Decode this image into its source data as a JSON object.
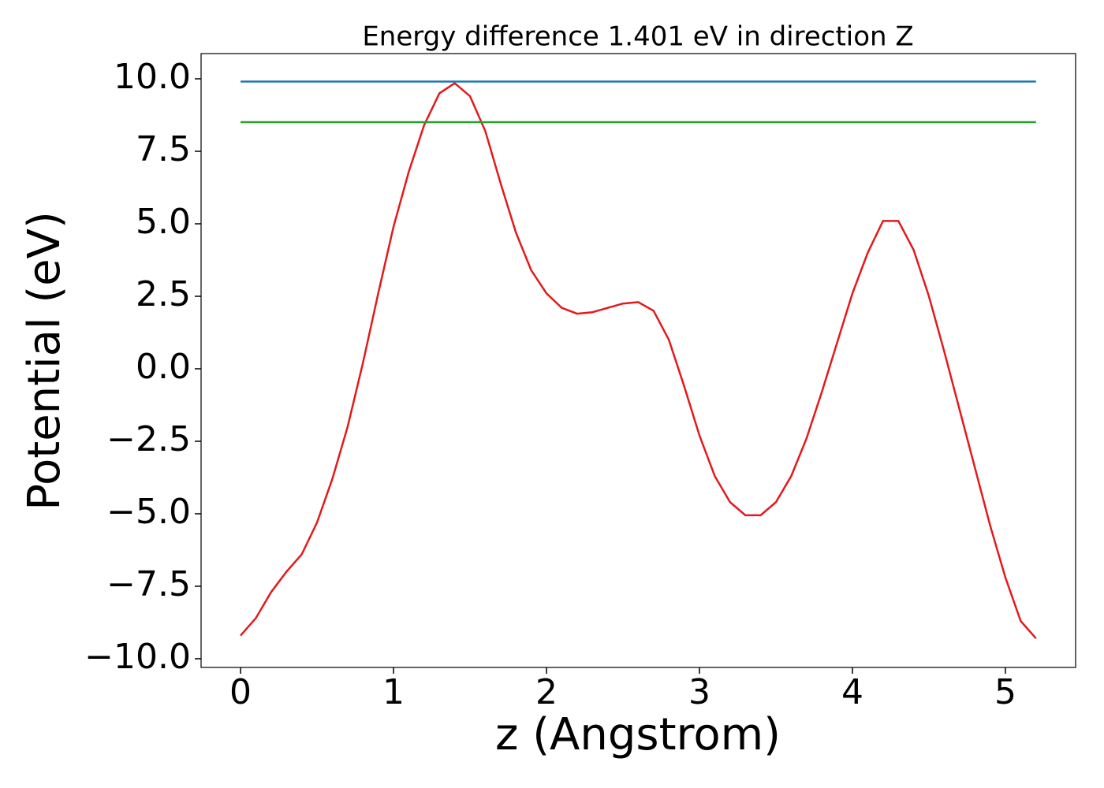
{
  "chart_data": {
    "type": "line",
    "title": "Energy difference 1.401 eV in direction Z",
    "xlabel": "z (Angstrom)",
    "ylabel": "Potential (eV)",
    "xlim": [
      -0.258,
      5.459
    ],
    "ylim": [
      -10.3,
      10.87
    ],
    "xticks": [
      0,
      1,
      2,
      3,
      4,
      5
    ],
    "yticks": [
      {
        "value": -10,
        "label": "−10.0"
      },
      {
        "value": -7.5,
        "label": "−7.5"
      },
      {
        "value": -5,
        "label": "−5.0"
      },
      {
        "value": -2.5,
        "label": "−2.5"
      },
      {
        "value": 0,
        "label": "0.0"
      },
      {
        "value": 2.5,
        "label": "2.5"
      },
      {
        "value": 5,
        "label": "5.0"
      },
      {
        "value": 7.5,
        "label": "7.5"
      },
      {
        "value": 10,
        "label": "10.0"
      }
    ],
    "series": [
      {
        "color": "#e31a1c",
        "x": [
          0,
          0.1,
          0.2,
          0.3,
          0.4,
          0.5,
          0.6,
          0.7,
          0.8,
          0.9,
          1.0,
          1.1,
          1.2,
          1.3,
          1.4,
          1.5,
          1.6,
          1.7,
          1.8,
          1.9,
          2.0,
          2.1,
          2.2,
          2.3,
          2.4,
          2.5,
          2.6,
          2.7,
          2.8,
          2.9,
          3.0,
          3.1,
          3.2,
          3.3,
          3.4,
          3.5,
          3.6,
          3.7,
          3.8,
          3.9,
          4.0,
          4.1,
          4.2,
          4.3,
          4.4,
          4.5,
          4.6,
          4.7,
          4.8,
          4.9,
          5.0,
          5.1,
          5.2
        ],
        "values": [
          -9.2,
          -8.6,
          -7.7,
          -7.0,
          -6.4,
          -5.3,
          -3.8,
          -2.0,
          0.2,
          2.6,
          4.9,
          6.8,
          8.4,
          9.5,
          9.85,
          9.4,
          8.2,
          6.4,
          4.7,
          3.4,
          2.6,
          2.1,
          1.9,
          1.95,
          2.1,
          2.25,
          2.3,
          2.0,
          1.0,
          -0.6,
          -2.3,
          -3.7,
          -4.6,
          -5.05,
          -5.05,
          -4.6,
          -3.7,
          -2.4,
          -0.8,
          0.9,
          2.6,
          4.0,
          5.1,
          5.1,
          4.1,
          2.5,
          0.6,
          -1.4,
          -3.4,
          -5.4,
          -7.2,
          -8.7,
          -9.3
        ]
      },
      {
        "color": "#1f77b4",
        "x": [
          0,
          5.2
        ],
        "values": [
          9.906,
          9.906
        ]
      },
      {
        "color": "#2ca02c",
        "x": [
          0,
          5.2
        ],
        "values": [
          8.505,
          8.505
        ]
      }
    ]
  }
}
